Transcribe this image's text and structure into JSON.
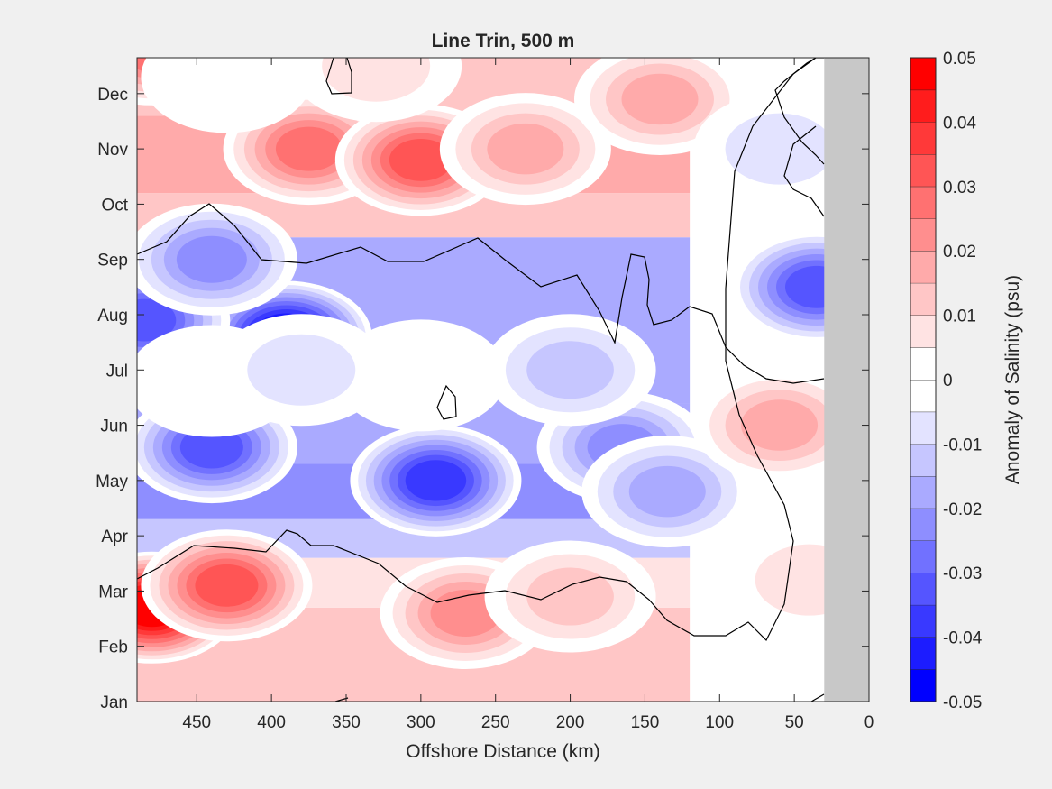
{
  "chart_data": {
    "type": "heatmap",
    "plot_style": "filled-contour",
    "title": "Line Trin, 500 m",
    "xlabel": "Offshore Distance (km)",
    "ylabel": "",
    "xlim": [
      490,
      0
    ],
    "x_reversed": true,
    "x_ticks": [
      450,
      400,
      350,
      300,
      250,
      200,
      150,
      100,
      50,
      0
    ],
    "y_tick_labels": [
      "Jan",
      "Feb",
      "Mar",
      "Apr",
      "May",
      "Jun",
      "Jul",
      "Aug",
      "Sep",
      "Oct",
      "Nov",
      "Dec"
    ],
    "no_data_region_km": [
      30,
      0
    ],
    "no_data_color": "#c8c8c8",
    "zero_contour_color": "#000000",
    "colorbar": {
      "label": "Anomaly of Salinity (psu)",
      "range": [
        -0.05,
        0.05
      ],
      "step": 0.005,
      "tick_values": [
        -0.05,
        -0.04,
        -0.03,
        -0.02,
        -0.01,
        0,
        0.01,
        0.02,
        0.03,
        0.04,
        0.05
      ],
      "tick_labels": [
        "-0.05",
        "-0.04",
        "-0.03",
        "-0.02",
        "-0.01",
        "0",
        "0.01",
        "0.02",
        "0.03",
        "0.04",
        "0.05"
      ],
      "negative_color": "#0000ff",
      "positive_color": "#ff0000",
      "zero_color": "#ffffff"
    },
    "anomaly_features": [
      {
        "x_km": 480,
        "month": 1.7,
        "value": 0.05
      },
      {
        "x_km": 430,
        "month": 2.1,
        "value": 0.035
      },
      {
        "x_km": 270,
        "month": 1.6,
        "value": 0.025
      },
      {
        "x_km": 200,
        "month": 1.9,
        "value": 0.015
      },
      {
        "x_km": 40,
        "month": 2.2,
        "value": 0.01
      },
      {
        "x_km": 440,
        "month": 4.6,
        "value": -0.035
      },
      {
        "x_km": 290,
        "month": 4.0,
        "value": -0.04
      },
      {
        "x_km": 165,
        "month": 4.6,
        "value": -0.025
      },
      {
        "x_km": 135,
        "month": 3.8,
        "value": -0.02
      },
      {
        "x_km": 390,
        "month": 6.6,
        "value": -0.05
      },
      {
        "x_km": 485,
        "month": 6.9,
        "value": -0.035
      },
      {
        "x_km": 440,
        "month": 5.8,
        "value": 0.0
      },
      {
        "x_km": 300,
        "month": 5.9,
        "value": 0.002
      },
      {
        "x_km": 380,
        "month": 6.0,
        "value": -0.012
      },
      {
        "x_km": 200,
        "month": 6.0,
        "value": -0.015
      },
      {
        "x_km": 440,
        "month": 8.0,
        "value": -0.025
      },
      {
        "x_km": 35,
        "month": 7.5,
        "value": -0.035
      },
      {
        "x_km": 60,
        "month": 5.0,
        "value": 0.018
      },
      {
        "x_km": 375,
        "month": 10.0,
        "value": 0.03
      },
      {
        "x_km": 300,
        "month": 9.8,
        "value": 0.035
      },
      {
        "x_km": 230,
        "month": 10.0,
        "value": 0.02
      },
      {
        "x_km": 140,
        "month": 10.9,
        "value": 0.02
      },
      {
        "x_km": 480,
        "month": 11.8,
        "value": 0.03
      },
      {
        "x_km": 430,
        "month": 11.3,
        "value": 0.0
      },
      {
        "x_km": 330,
        "month": 11.5,
        "value": 0.01
      },
      {
        "x_km": 60,
        "month": 10.0,
        "value": -0.01
      }
    ]
  }
}
